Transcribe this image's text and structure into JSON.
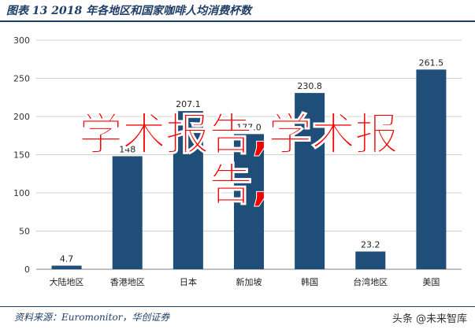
{
  "header": {
    "figure_title": "图表 13   2018 年各地区和国家咖啡人均消费杯数"
  },
  "chart_data": {
    "type": "bar",
    "title": "2018 年各地区和国家咖啡人均消费杯数",
    "categories": [
      "大陆地区",
      "香港地区",
      "日本",
      "新加坡",
      "韩国",
      "台湾地区",
      "美国"
    ],
    "values": [
      4.7,
      148,
      207.1,
      177.0,
      230.8,
      23.2,
      261.5
    ],
    "value_labels": [
      "4.7",
      "148",
      "207.1",
      "177.0",
      "230.8",
      "23.2",
      "261.5"
    ],
    "ylim": [
      0,
      300
    ],
    "yticks": [
      0,
      50,
      100,
      150,
      200,
      250,
      300
    ],
    "grid": true,
    "bar_color": "#1f4e79",
    "grid_color": "#d0d0d0"
  },
  "overlay": {
    "line1": "学术报告,学术报",
    "line2": "告,"
  },
  "footer": {
    "source": "资料来源：Euromonitor，华创证券",
    "brand": "头条 @未来智库"
  }
}
